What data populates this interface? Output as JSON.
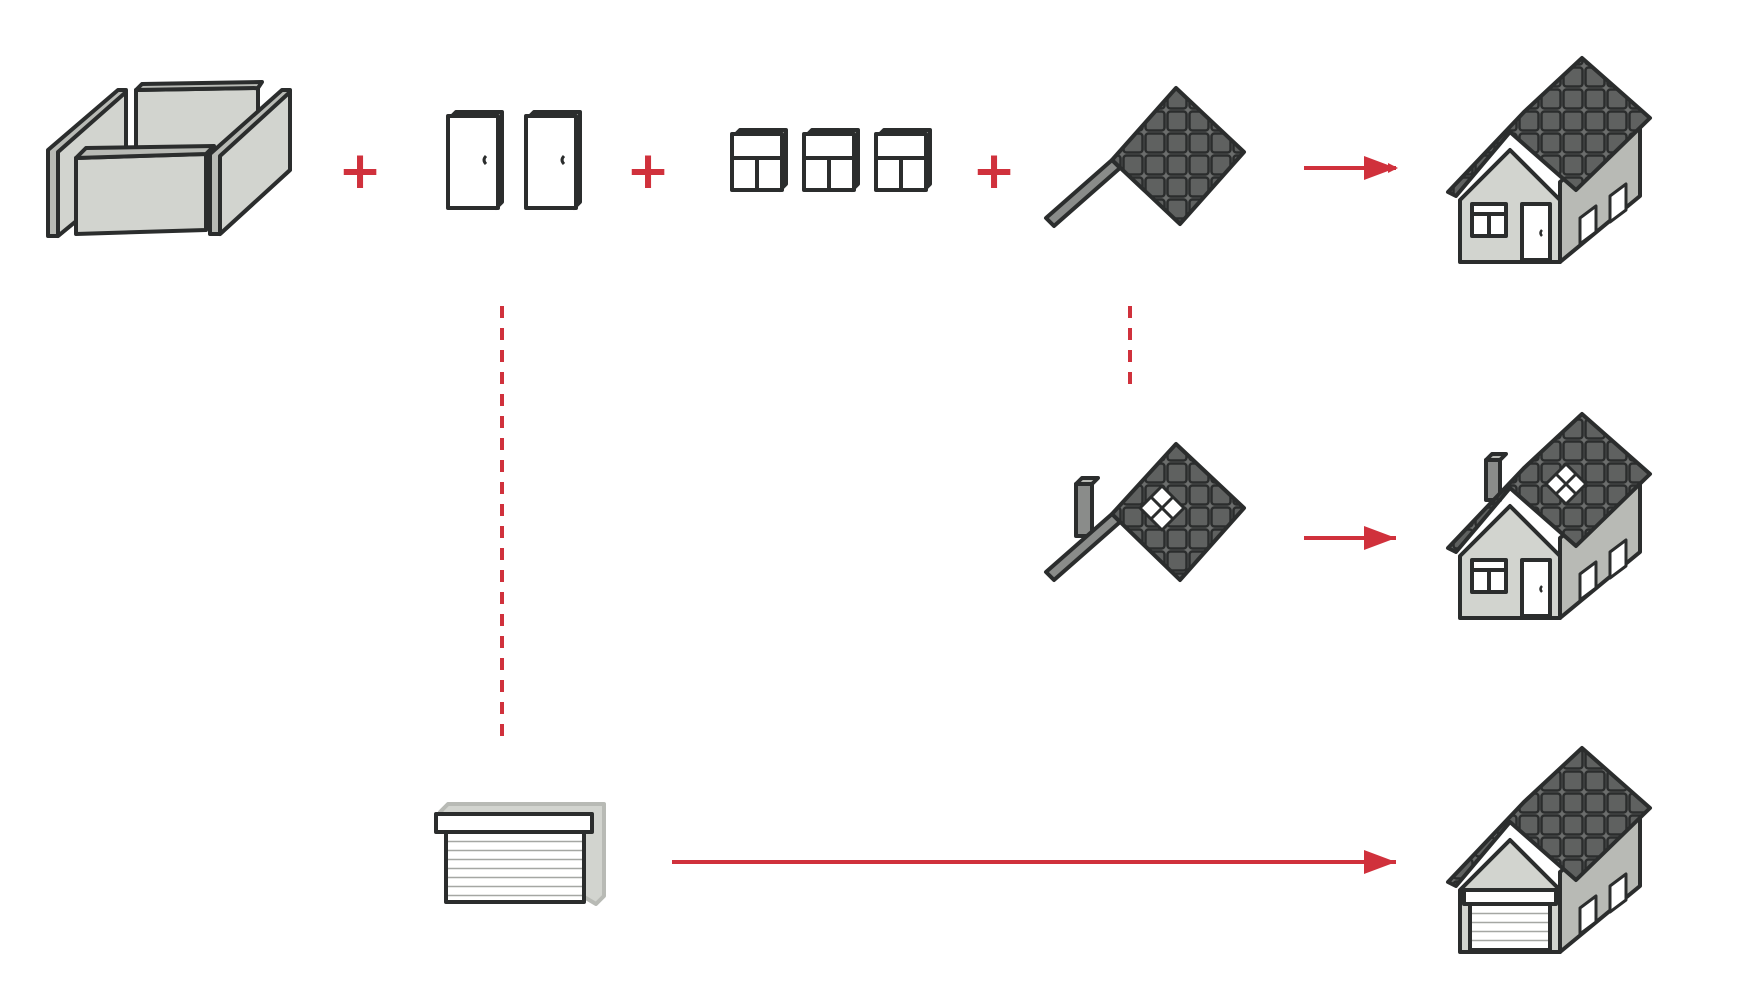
{
  "diagram": {
    "description_type": "builder-pattern-house-construction",
    "operators": {
      "plus": "+"
    },
    "parts": {
      "walls": {
        "name": "walls",
        "icon": "walls-icon"
      },
      "doors": {
        "name": "doors",
        "count": 2,
        "icon": "door-icon"
      },
      "windows": {
        "name": "windows",
        "count": 3,
        "icon": "window-icon"
      },
      "roof": {
        "name": "roof",
        "icon": "roof-icon"
      },
      "fancy_roof": {
        "name": "roof-with-chimney-and-skylight",
        "icon": "fancy-roof-icon"
      },
      "garage_door": {
        "name": "garage-door",
        "icon": "garage-door-icon"
      }
    },
    "results": [
      {
        "name": "basic-house",
        "icon": "house-icon"
      },
      {
        "name": "house-with-chimney-and-skylight",
        "icon": "fancy-house-icon"
      },
      {
        "name": "house-with-garage",
        "icon": "garage-house-icon"
      }
    ],
    "colors": {
      "accent": "#d0313c",
      "wall_fill": "#d2d4cf",
      "wall_fill_dark": "#b8bab5",
      "roof_fill": "#6b6d6c",
      "outline": "#2b2d2d",
      "white": "#ffffff"
    }
  }
}
